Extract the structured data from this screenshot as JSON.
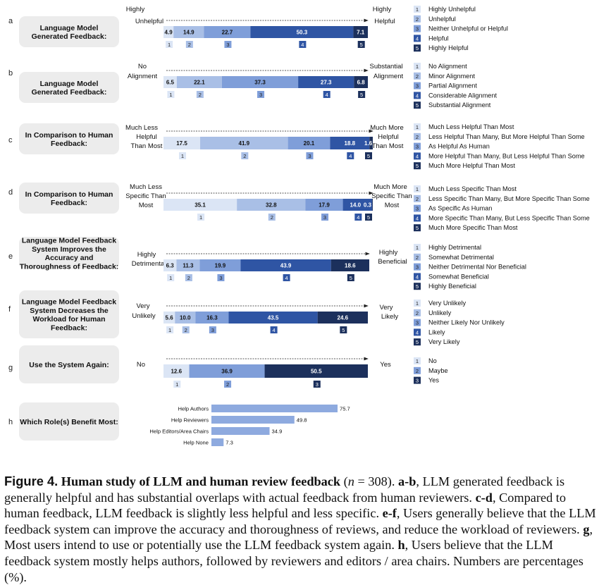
{
  "chart_data": [
    {
      "type": "bar",
      "stacked": true,
      "panel": "a",
      "question": "Language Model Generated Feedback:",
      "left_label": "Highly Unhelpful",
      "right_label": "Highly Helpful",
      "categories": [
        "Highly Unhelpful",
        "Unhelpful",
        "Neither Unhelpful or Helpful",
        "Helpful",
        "Highly Helpful"
      ],
      "values": [
        4.9,
        14.9,
        22.7,
        50.3,
        7.1
      ]
    },
    {
      "type": "bar",
      "stacked": true,
      "panel": "b",
      "question": "Language Model Generated Feedback:",
      "left_label": "No Alignment",
      "right_label": "Substantial Alignment",
      "categories": [
        "No Alignment",
        "Minor Alignment",
        "Partial Alignment",
        "Considerable Alignment",
        "Substantial Alignment"
      ],
      "values": [
        6.5,
        22.1,
        37.3,
        27.3,
        6.8
      ]
    },
    {
      "type": "bar",
      "stacked": true,
      "panel": "c",
      "question": "In Comparison to Human Feedback:",
      "left_label": "Much Less Helpful Than Most",
      "right_label": "Much More Helpful Than Most",
      "categories": [
        "Much Less Helpful Than Most",
        "Less Helpful Than Many, But More Helpful Than Some",
        "As Helpful As Human",
        "More Helpful Than Many, But Less Helpful Than Some",
        "Much More Helpful Than Most"
      ],
      "values": [
        17.5,
        41.9,
        20.1,
        18.8,
        1.6
      ]
    },
    {
      "type": "bar",
      "stacked": true,
      "panel": "d",
      "question": "In Comparison to Human Feedback:",
      "left_label": "Much Less Specific Than Most",
      "right_label": "Much More Specific Than Most",
      "categories": [
        "Much Less Specific Than Most",
        "Less Specific Than Many, But More Specific Than Some",
        "As Specific As Human",
        "More Specific Than Many, But Less Specific Than Some",
        "Much More Specific Than Most"
      ],
      "values": [
        35.1,
        32.8,
        17.9,
        14.0,
        0.3
      ]
    },
    {
      "type": "bar",
      "stacked": true,
      "panel": "e",
      "question": "Language Model Feedback System Improves the Accuracy and Thoroughness of Feedback:",
      "left_label": "Highly Detrimental",
      "right_label": "Highly Beneficial",
      "categories": [
        "Highly Detrimental",
        "Somewhat Detrimental",
        "Neither Detrimental Nor Beneficial",
        "Somewhat Beneficial",
        "Highly Beneficial"
      ],
      "values": [
        6.3,
        11.3,
        19.9,
        43.9,
        18.6
      ]
    },
    {
      "type": "bar",
      "stacked": true,
      "panel": "f",
      "question": "Language Model Feedback System Decreases the Workload for Human Feedback:",
      "left_label": "Very Unlikely",
      "right_label": "Very Likely",
      "categories": [
        "Very Unlikely",
        "Unlikely",
        "Neither Likely Nor Unlikely",
        "Likely",
        "Very Likely"
      ],
      "values": [
        5.6,
        10.0,
        16.3,
        43.5,
        24.6
      ]
    },
    {
      "type": "bar",
      "stacked": true,
      "panel": "g",
      "question": "Use the System Again:",
      "left_label": "No",
      "right_label": "Yes",
      "categories": [
        "No",
        "Maybe",
        "Yes"
      ],
      "values": [
        12.6,
        36.9,
        50.5
      ]
    },
    {
      "type": "bar",
      "orientation": "horizontal",
      "panel": "h",
      "question": "Which Role(s) Benefit Most:",
      "categories": [
        "Help Authors",
        "Help Reviewers",
        "Help Editors/Area Chairs",
        "Help None"
      ],
      "values": [
        75.7,
        49.8,
        34.9,
        7.3
      ]
    }
  ],
  "colors": {
    "scale5": [
      "#dbe5f5",
      "#a9bfe6",
      "#7f9ed9",
      "#2f55a4",
      "#1c305c"
    ],
    "scale3": [
      "#dbe5f5",
      "#7f9ed9",
      "#1c305c"
    ],
    "roles_bar": "#8eaadf",
    "question_box": "#ececec"
  },
  "caption": {
    "label": "Figure 4.",
    "title": "Human study of LLM and human review feedback",
    "n_open": "(",
    "n_var": "n",
    "n_rest": " = 308).",
    "s1_tag": "a-b",
    "s1": ", LLM generated feedback is generally helpful and has substantial overlaps with actual feedback from human reviewers.",
    "s2_tag": "c-d",
    "s2": ", Compared to human feedback, LLM feedback is slightly less helpful and less specific.",
    "s3_tag": "e-f",
    "s3": ", Users generally believe that the LLM feedback system can improve the accuracy and thoroughness of reviews, and reduce the workload of reviewers.",
    "s4_tag": "g",
    "s4": ", Most users intend to use or potentially use the LLM feedback system again.",
    "s5_tag": "h",
    "s5": ", Users believe that the LLM feedback system mostly helps authors, followed by reviewers and editors / area chairs. Numbers are percentages (%)."
  }
}
